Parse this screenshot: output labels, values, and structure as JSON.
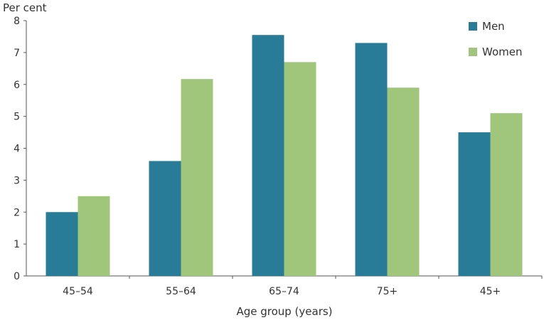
{
  "chart_data": {
    "type": "bar",
    "title": "",
    "ylabel": "Per cent",
    "xlabel": "Age group (years)",
    "categories": [
      "45–54",
      "55–64",
      "65–74",
      "75+",
      "45+"
    ],
    "series": [
      {
        "name": "Men",
        "color": "#287C97",
        "values": [
          2.0,
          3.6,
          7.55,
          7.3,
          4.5
        ]
      },
      {
        "name": "Women",
        "color": "#A0C67B",
        "values": [
          2.5,
          6.17,
          6.7,
          5.9,
          5.1
        ]
      }
    ],
    "ylim": [
      0,
      8
    ],
    "yticks": [
      0,
      1,
      2,
      3,
      4,
      5,
      6,
      7,
      8
    ],
    "grid": false,
    "legend": "top-right"
  }
}
